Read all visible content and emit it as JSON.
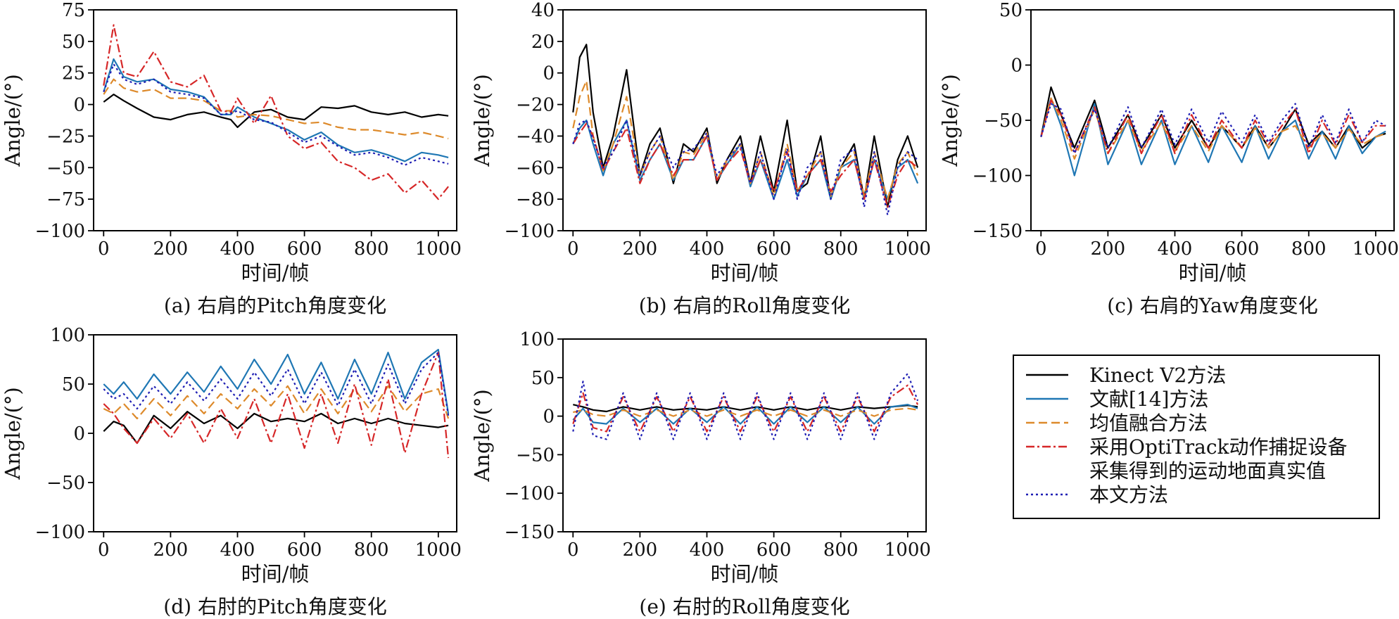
{
  "series_styles": [
    {
      "name": "Kinect V2方法",
      "color": "#000000",
      "dash": ""
    },
    {
      "name": "文献[14]方法",
      "color": "#1f77b4",
      "dash": ""
    },
    {
      "name": "均值融合方法",
      "color": "#dd8a2b",
      "dash": "12,6"
    },
    {
      "name": "采用OptiTrack动作捕捉设备采集得到的运动地面真实值",
      "color": "#d62728",
      "dash": "12,4,3,4"
    },
    {
      "name": "本文方法",
      "color": "#1f1fb4",
      "dash": "3,4"
    }
  ],
  "legend": {
    "items": [
      {
        "lines": [
          "Kinect V2方法"
        ]
      },
      {
        "lines": [
          "文献[14]方法"
        ]
      },
      {
        "lines": [
          "均值融合方法"
        ]
      },
      {
        "lines": [
          "采用OptiTrack动作捕捉设备",
          "采集得到的运动地面真实值"
        ]
      },
      {
        "lines": [
          "本文方法"
        ]
      }
    ]
  },
  "chart_data": [
    {
      "type": "line",
      "caption": "(a) 右肩的Pitch角度变化",
      "xlabel": "时间/帧",
      "ylabel": "Angle/(°)",
      "xlim": [
        -30,
        1055
      ],
      "ylim": [
        -100,
        75
      ],
      "xticks": [
        0,
        200,
        400,
        600,
        800,
        1000
      ],
      "yticks": [
        -100,
        -75,
        -50,
        -25,
        0,
        25,
        50,
        75
      ],
      "x": [
        0,
        30,
        60,
        100,
        150,
        200,
        250,
        300,
        350,
        380,
        400,
        450,
        500,
        550,
        600,
        650,
        700,
        750,
        800,
        850,
        900,
        950,
        1000,
        1030
      ],
      "series": [
        {
          "name": "Kinect V2方法",
          "values": [
            2,
            8,
            3,
            -3,
            -10,
            -12,
            -8,
            -6,
            -10,
            -12,
            -18,
            -6,
            -4,
            -10,
            -12,
            -2,
            -3,
            -1,
            -6,
            -8,
            -6,
            -10,
            -8,
            -9
          ]
        },
        {
          "name": "文献[14]方法",
          "values": [
            10,
            36,
            22,
            18,
            20,
            12,
            10,
            6,
            -8,
            -8,
            -2,
            -10,
            -15,
            -20,
            -28,
            -22,
            -32,
            -38,
            -36,
            -40,
            -45,
            -38,
            -40,
            -42
          ]
        },
        {
          "name": "均值融合方法",
          "values": [
            8,
            20,
            13,
            10,
            12,
            5,
            5,
            3,
            -5,
            -5,
            -10,
            -8,
            -9,
            -12,
            -15,
            -14,
            -18,
            -20,
            -20,
            -22,
            -24,
            -22,
            -25,
            -27
          ]
        },
        {
          "name": "采用OptiTrack动作捕捉设备采集得到的运动地面真实值",
          "values": [
            15,
            63,
            25,
            22,
            42,
            18,
            14,
            23,
            -5,
            -6,
            5,
            -15,
            7,
            -25,
            -35,
            -30,
            -45,
            -50,
            -60,
            -55,
            -70,
            -60,
            -75,
            -65
          ]
        },
        {
          "name": "本文方法",
          "values": [
            10,
            32,
            20,
            16,
            20,
            10,
            8,
            5,
            -8,
            -7,
            -5,
            -12,
            -14,
            -22,
            -30,
            -25,
            -33,
            -40,
            -38,
            -42,
            -48,
            -42,
            -45,
            -47
          ]
        }
      ]
    },
    {
      "type": "line",
      "caption": "(b) 右肩的Roll角度变化",
      "xlabel": "时间/帧",
      "ylabel": "Angle/(°)",
      "xlim": [
        -30,
        1055
      ],
      "ylim": [
        -100,
        40
      ],
      "xticks": [
        0,
        200,
        400,
        600,
        800,
        1000
      ],
      "yticks": [
        -100,
        -80,
        -60,
        -40,
        -20,
        0,
        20,
        40
      ],
      "x": [
        0,
        20,
        40,
        60,
        90,
        120,
        160,
        200,
        230,
        260,
        300,
        330,
        360,
        400,
        430,
        460,
        500,
        530,
        560,
        600,
        640,
        670,
        700,
        740,
        770,
        800,
        840,
        870,
        900,
        940,
        970,
        1000,
        1030
      ],
      "series": [
        {
          "name": "Kinect V2方法",
          "values": [
            -25,
            10,
            18,
            -25,
            -60,
            -40,
            2,
            -65,
            -45,
            -35,
            -70,
            -45,
            -50,
            -35,
            -70,
            -55,
            -40,
            -70,
            -40,
            -75,
            -30,
            -75,
            -70,
            -40,
            -80,
            -60,
            -45,
            -80,
            -40,
            -85,
            -55,
            -40,
            -60
          ]
        },
        {
          "name": "文献[14]方法",
          "values": [
            -45,
            -35,
            -30,
            -45,
            -65,
            -45,
            -30,
            -68,
            -55,
            -45,
            -68,
            -55,
            -55,
            -40,
            -68,
            -58,
            -45,
            -72,
            -55,
            -80,
            -55,
            -78,
            -65,
            -55,
            -80,
            -60,
            -55,
            -80,
            -55,
            -80,
            -60,
            -55,
            -70
          ]
        },
        {
          "name": "均值融合方法",
          "values": [
            -35,
            -15,
            -5,
            -40,
            -62,
            -45,
            -15,
            -65,
            -50,
            -40,
            -68,
            -50,
            -52,
            -38,
            -68,
            -55,
            -45,
            -70,
            -50,
            -78,
            -45,
            -75,
            -65,
            -50,
            -78,
            -60,
            -50,
            -78,
            -50,
            -80,
            -58,
            -50,
            -65
          ]
        },
        {
          "name": "采用OptiTrack动作捕捉设备采集得到的运动地面真实值",
          "values": [
            -45,
            -38,
            -32,
            -40,
            -62,
            -50,
            -35,
            -70,
            -55,
            -45,
            -65,
            -55,
            -55,
            -40,
            -68,
            -58,
            -48,
            -70,
            -55,
            -75,
            -50,
            -75,
            -65,
            -55,
            -75,
            -65,
            -55,
            -80,
            -55,
            -85,
            -65,
            -55,
            -60
          ]
        },
        {
          "name": "本文方法",
          "values": [
            -45,
            -32,
            -30,
            -42,
            -60,
            -50,
            -30,
            -65,
            -50,
            -40,
            -60,
            -50,
            -48,
            -38,
            -65,
            -55,
            -45,
            -70,
            -50,
            -80,
            -48,
            -80,
            -60,
            -50,
            -80,
            -55,
            -48,
            -85,
            -50,
            -90,
            -60,
            -50,
            -55
          ]
        }
      ]
    },
    {
      "type": "line",
      "caption": "(c) 右肩的Yaw角度变化",
      "xlabel": "时间/帧",
      "ylabel": "Angle/(°)",
      "xlim": [
        -30,
        1055
      ],
      "ylim": [
        -150,
        50
      ],
      "xticks": [
        0,
        200,
        400,
        600,
        800,
        1000
      ],
      "yticks": [
        -150,
        -100,
        -50,
        0,
        50
      ],
      "x": [
        0,
        30,
        60,
        100,
        160,
        200,
        260,
        300,
        360,
        400,
        450,
        500,
        540,
        600,
        640,
        680,
        720,
        760,
        800,
        840,
        880,
        920,
        960,
        1000,
        1030
      ],
      "series": [
        {
          "name": "Kinect V2方法",
          "values": [
            -65,
            -20,
            -45,
            -75,
            -32,
            -75,
            -45,
            -75,
            -45,
            -75,
            -50,
            -75,
            -55,
            -75,
            -55,
            -75,
            -60,
            -40,
            -72,
            -60,
            -75,
            -55,
            -75,
            -65,
            -62
          ]
        },
        {
          "name": "文献[14]方法",
          "values": [
            -65,
            -30,
            -55,
            -100,
            -35,
            -90,
            -50,
            -90,
            -50,
            -90,
            -55,
            -88,
            -55,
            -88,
            -55,
            -85,
            -60,
            -50,
            -85,
            -60,
            -85,
            -55,
            -80,
            -65,
            -60
          ]
        },
        {
          "name": "均值融合方法",
          "values": [
            -65,
            -30,
            -50,
            -85,
            -40,
            -80,
            -50,
            -78,
            -52,
            -78,
            -55,
            -78,
            -55,
            -75,
            -57,
            -75,
            -60,
            -55,
            -75,
            -62,
            -75,
            -58,
            -72,
            -65,
            -62
          ]
        },
        {
          "name": "采用OptiTrack动作捕捉设备采集得到的运动地面真实值",
          "values": [
            -65,
            -32,
            -45,
            -80,
            -38,
            -80,
            -45,
            -80,
            -45,
            -80,
            -45,
            -75,
            -50,
            -75,
            -50,
            -72,
            -55,
            -40,
            -80,
            -50,
            -72,
            -45,
            -70,
            -55,
            -55
          ]
        },
        {
          "name": "本文方法",
          "values": [
            -65,
            -35,
            -40,
            -80,
            -40,
            -75,
            -38,
            -75,
            -40,
            -72,
            -40,
            -70,
            -42,
            -70,
            -45,
            -70,
            -50,
            -35,
            -75,
            -45,
            -70,
            -40,
            -70,
            -50,
            -55
          ]
        }
      ]
    },
    {
      "type": "line",
      "caption": "(d) 右肘的Pitch角度变化",
      "xlabel": "时间/帧",
      "ylabel": "Angle/(°)",
      "xlim": [
        -30,
        1055
      ],
      "ylim": [
        -100,
        100
      ],
      "xticks": [
        0,
        200,
        400,
        600,
        800,
        1000
      ],
      "yticks": [
        -100,
        -50,
        0,
        50,
        100
      ],
      "x": [
        0,
        30,
        60,
        100,
        150,
        200,
        250,
        300,
        350,
        400,
        450,
        500,
        550,
        600,
        650,
        700,
        750,
        800,
        850,
        900,
        950,
        1000,
        1030
      ],
      "series": [
        {
          "name": "Kinect V2方法",
          "values": [
            2,
            12,
            8,
            -10,
            18,
            5,
            22,
            10,
            18,
            5,
            20,
            12,
            15,
            12,
            20,
            10,
            15,
            10,
            15,
            10,
            8,
            6,
            8
          ]
        },
        {
          "name": "文献[14]方法",
          "values": [
            50,
            40,
            52,
            35,
            60,
            40,
            62,
            42,
            68,
            45,
            75,
            50,
            80,
            40,
            72,
            35,
            75,
            40,
            82,
            35,
            72,
            85,
            20
          ]
        },
        {
          "name": "均值融合方法",
          "values": [
            25,
            20,
            30,
            15,
            35,
            18,
            38,
            20,
            40,
            25,
            45,
            28,
            48,
            20,
            45,
            20,
            45,
            22,
            48,
            22,
            40,
            45,
            15
          ]
        },
        {
          "name": "采用OptiTrack动作捕捉设备采集得到的运动地面真实值",
          "values": [
            30,
            20,
            5,
            -10,
            15,
            -5,
            20,
            -10,
            25,
            -5,
            35,
            -10,
            40,
            -15,
            40,
            -10,
            50,
            -12,
            55,
            -20,
            40,
            82,
            -25
          ]
        },
        {
          "name": "本文方法",
          "values": [
            45,
            35,
            40,
            25,
            48,
            30,
            52,
            33,
            55,
            35,
            62,
            38,
            65,
            30,
            62,
            28,
            65,
            30,
            70,
            30,
            65,
            82,
            18
          ]
        }
      ]
    },
    {
      "type": "line",
      "caption": "(e) 右肘的Roll角度变化",
      "xlabel": "时间/帧",
      "ylabel": "Angle/(°)",
      "xlim": [
        -30,
        1055
      ],
      "ylim": [
        -150,
        100
      ],
      "xticks": [
        0,
        200,
        400,
        600,
        800,
        1000
      ],
      "yticks": [
        -150,
        -100,
        -50,
        0,
        50,
        100
      ],
      "x": [
        0,
        30,
        60,
        100,
        150,
        200,
        250,
        300,
        350,
        400,
        450,
        500,
        550,
        600,
        650,
        700,
        750,
        800,
        850,
        900,
        950,
        1000,
        1030
      ],
      "series": [
        {
          "name": "Kinect V2方法",
          "values": [
            15,
            12,
            8,
            6,
            12,
            8,
            12,
            8,
            10,
            8,
            12,
            8,
            12,
            8,
            12,
            8,
            12,
            8,
            12,
            10,
            12,
            14,
            12
          ]
        },
        {
          "name": "文献[14]方法",
          "values": [
            -5,
            10,
            -8,
            -10,
            10,
            -8,
            10,
            -10,
            10,
            -8,
            12,
            -10,
            12,
            -10,
            12,
            -8,
            12,
            -8,
            12,
            -10,
            12,
            15,
            10
          ]
        },
        {
          "name": "均值融合方法",
          "values": [
            5,
            8,
            2,
            0,
            8,
            0,
            8,
            0,
            8,
            0,
            8,
            0,
            8,
            0,
            8,
            0,
            8,
            0,
            8,
            0,
            8,
            10,
            8
          ]
        },
        {
          "name": "采用OptiTrack动作捕捉设备采集得到的运动地面真实值",
          "values": [
            -10,
            30,
            -15,
            -20,
            25,
            -20,
            25,
            -20,
            25,
            -20,
            25,
            -20,
            25,
            -20,
            25,
            -20,
            25,
            -20,
            25,
            -20,
            25,
            40,
            15
          ]
        },
        {
          "name": "本文方法",
          "values": [
            -20,
            45,
            -25,
            -30,
            30,
            -30,
            30,
            -30,
            30,
            -30,
            30,
            -30,
            30,
            -30,
            30,
            -30,
            30,
            -30,
            30,
            -30,
            30,
            55,
            20
          ]
        }
      ]
    }
  ]
}
